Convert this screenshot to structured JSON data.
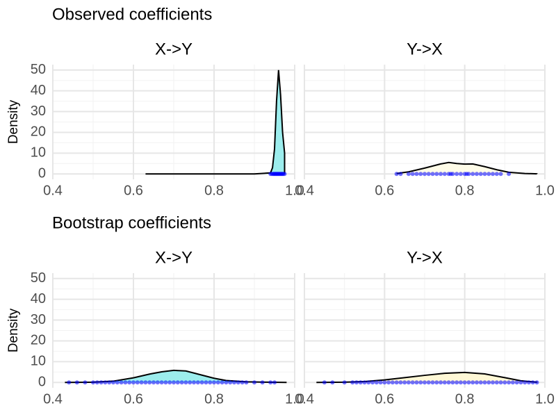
{
  "chart_data": [
    {
      "type": "density",
      "row_title": "Observed coefficients",
      "title": "X->Y",
      "ylabel": "Density",
      "x": [
        0.63,
        0.9,
        0.94,
        0.945,
        0.95,
        0.955,
        0.96,
        0.965,
        0.97,
        0.975
      ],
      "y": [
        0,
        0,
        0.5,
        3,
        12,
        35,
        50,
        38,
        20,
        10
      ],
      "fill": "#9ceded",
      "rug": [
        0.94,
        0.943,
        0.946,
        0.948,
        0.95,
        0.952,
        0.954,
        0.956,
        0.958,
        0.96,
        0.962,
        0.964,
        0.966,
        0.968,
        0.97,
        0.972,
        0.975
      ],
      "rug_color": "#0000ff",
      "xlim": [
        0.4,
        1.0
      ],
      "xticks": [
        0.4,
        0.6,
        0.8,
        {
          "value": 1,
          "label": "1.0"
        }
      ],
      "x_minor_ticks": [
        0.5,
        0.7,
        0.9
      ],
      "ylim": [
        -2.6,
        52.6
      ],
      "yticks": [
        0,
        10,
        20,
        30,
        40,
        50
      ],
      "y_minor_ticks": [
        5,
        15,
        25,
        35,
        45
      ],
      "y_tick_labels": true,
      "grid": true
    },
    {
      "type": "density",
      "title": "Y->X",
      "x": [
        0.63,
        0.66,
        0.7,
        0.74,
        0.76,
        0.78,
        0.8,
        0.82,
        0.85,
        0.88,
        0.91,
        0.95,
        0.98
      ],
      "y": [
        0.2,
        1,
        2.8,
        4.8,
        5.5,
        5,
        4.7,
        4.8,
        3.5,
        2,
        0.8,
        0.2,
        0.05
      ],
      "fill": "#fffce8",
      "rug": [
        0.63,
        0.64,
        0.66,
        0.67,
        0.68,
        0.69,
        0.7,
        0.71,
        0.72,
        0.73,
        0.74,
        0.75,
        0.76,
        0.765,
        0.77,
        0.78,
        0.79,
        0.8,
        0.805,
        0.81,
        0.82,
        0.83,
        0.84,
        0.85,
        0.86,
        0.87,
        0.88,
        0.89,
        0.91
      ],
      "rug_color": "#0000ff",
      "xlim": [
        0.4,
        1.0
      ],
      "xticks": [
        {
          "value": 0.4,
          "label": "0.4"
        },
        0.6,
        0.8,
        {
          "value": 1,
          "label": "1.0"
        }
      ],
      "x_minor_ticks": [
        0.5,
        0.7,
        0.9
      ],
      "ylim": [
        -2.6,
        52.6
      ],
      "yticks": [
        0,
        10,
        20,
        30,
        40,
        50
      ],
      "y_minor_ticks": [
        5,
        15,
        25,
        35,
        45
      ],
      "y_tick_labels": false,
      "grid": true
    },
    {
      "type": "density",
      "row_title": "Bootstrap coefficients",
      "title": "X->Y",
      "ylabel": "Density",
      "x": [
        0.43,
        0.5,
        0.55,
        0.6,
        0.64,
        0.67,
        0.7,
        0.73,
        0.76,
        0.8,
        0.83,
        0.88,
        0.93,
        0.98
      ],
      "y": [
        0,
        0.1,
        0.6,
        2.2,
        4,
        5.1,
        5.8,
        5.5,
        4,
        2,
        0.9,
        0.3,
        0.1,
        0
      ],
      "fill": "#9ceded",
      "rug": [
        0.44,
        0.46,
        0.48,
        0.5,
        0.51,
        0.52,
        0.53,
        0.54,
        0.55,
        0.56,
        0.57,
        0.58,
        0.59,
        0.6,
        0.61,
        0.62,
        0.63,
        0.64,
        0.65,
        0.66,
        0.67,
        0.68,
        0.69,
        0.7,
        0.71,
        0.72,
        0.73,
        0.74,
        0.75,
        0.76,
        0.77,
        0.78,
        0.79,
        0.8,
        0.81,
        0.82,
        0.83,
        0.84,
        0.85,
        0.86,
        0.87,
        0.88,
        0.9,
        0.92,
        0.94,
        0.95
      ],
      "rug_color": "#0000ff",
      "xlim": [
        0.4,
        1.0
      ],
      "xticks": [
        0.4,
        0.6,
        0.8,
        {
          "value": 1,
          "label": "1.0"
        }
      ],
      "x_minor_ticks": [
        0.5,
        0.7,
        0.9
      ],
      "ylim": [
        -2.6,
        52.6
      ],
      "yticks": [
        0,
        10,
        20,
        30,
        40,
        50
      ],
      "y_minor_ticks": [
        5,
        15,
        25,
        35,
        45
      ],
      "y_tick_labels": true,
      "grid": true
    },
    {
      "type": "density",
      "title": "Y->X",
      "x": [
        0.43,
        0.5,
        0.55,
        0.6,
        0.65,
        0.7,
        0.75,
        0.8,
        0.85,
        0.9,
        0.94,
        0.98
      ],
      "y": [
        0,
        0.1,
        0.4,
        1.2,
        2.3,
        3.4,
        4.4,
        4.8,
        4.1,
        2.3,
        0.8,
        0.1
      ],
      "fill": "#fff8d6",
      "rug": [
        0.45,
        0.47,
        0.5,
        0.52,
        0.53,
        0.54,
        0.55,
        0.56,
        0.57,
        0.58,
        0.59,
        0.6,
        0.61,
        0.62,
        0.63,
        0.64,
        0.65,
        0.66,
        0.67,
        0.68,
        0.69,
        0.7,
        0.71,
        0.72,
        0.73,
        0.74,
        0.75,
        0.76,
        0.77,
        0.78,
        0.79,
        0.8,
        0.81,
        0.82,
        0.83,
        0.84,
        0.85,
        0.86,
        0.87,
        0.88,
        0.89,
        0.9,
        0.91,
        0.92,
        0.93,
        0.94,
        0.95,
        0.96,
        0.97,
        0.98
      ],
      "rug_color": "#0000ff",
      "xlim": [
        0.4,
        1.0
      ],
      "xticks": [
        {
          "value": 0.4,
          "label": "0.4"
        },
        0.6,
        0.8,
        {
          "value": 1,
          "label": "1.0"
        }
      ],
      "x_minor_ticks": [
        0.5,
        0.7,
        0.9
      ],
      "ylim": [
        -2.6,
        52.6
      ],
      "yticks": [
        0,
        10,
        20,
        30,
        40,
        50
      ],
      "y_minor_ticks": [
        5,
        15,
        25,
        35,
        45
      ],
      "y_tick_labels": false,
      "grid": true
    }
  ]
}
